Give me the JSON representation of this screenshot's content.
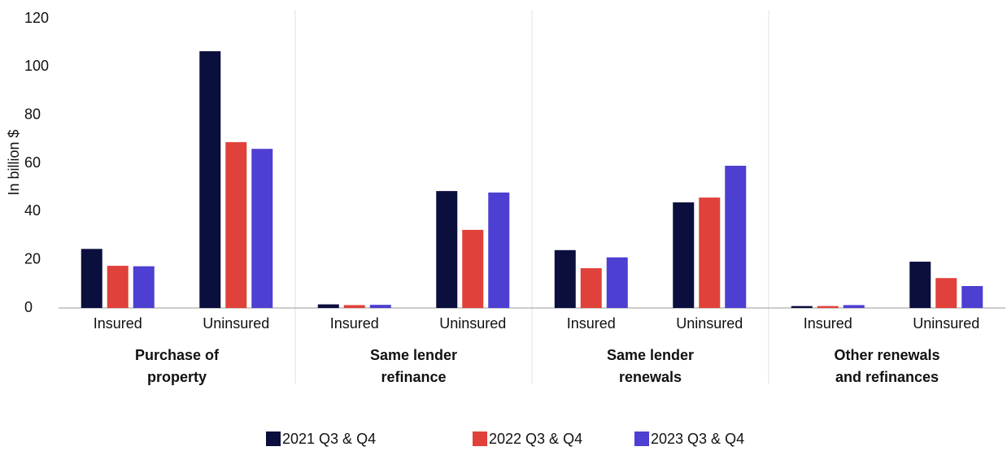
{
  "chart_data": {
    "type": "bar",
    "y_label": "In billion $",
    "categories": [
      "Insured",
      "Uninsured",
      "Insured",
      "Uninsured",
      "Insured",
      "Uninsured",
      "Insured",
      "Uninsured"
    ],
    "groups": [
      [
        "Purchase of",
        "property"
      ],
      [
        "Same lender",
        "refinance"
      ],
      [
        "Same lender",
        "renewals"
      ],
      [
        "Other renewals",
        "and refinances"
      ]
    ],
    "series": [
      {
        "name": "2021 Q3 & Q4",
        "color": "#0a0f3d",
        "values": [
          24.5,
          106.5,
          1.5,
          48.5,
          24,
          43.8,
          0.8,
          19.2
        ]
      },
      {
        "name": "2022 Q3 & Q4",
        "color": "#e0413a",
        "values": [
          17.5,
          68.8,
          1.2,
          32.4,
          16.5,
          45.8,
          0.8,
          12.4
        ]
      },
      {
        "name": "2023 Q3 & Q4",
        "color": "#4d3fd1",
        "values": [
          17.3,
          66,
          1.3,
          47.9,
          21,
          59,
          1.2,
          9.1
        ]
      }
    ],
    "ylim": [
      0,
      120
    ],
    "yticks": [
      0,
      20,
      40,
      60,
      80,
      100,
      120
    ],
    "grid": false
  }
}
